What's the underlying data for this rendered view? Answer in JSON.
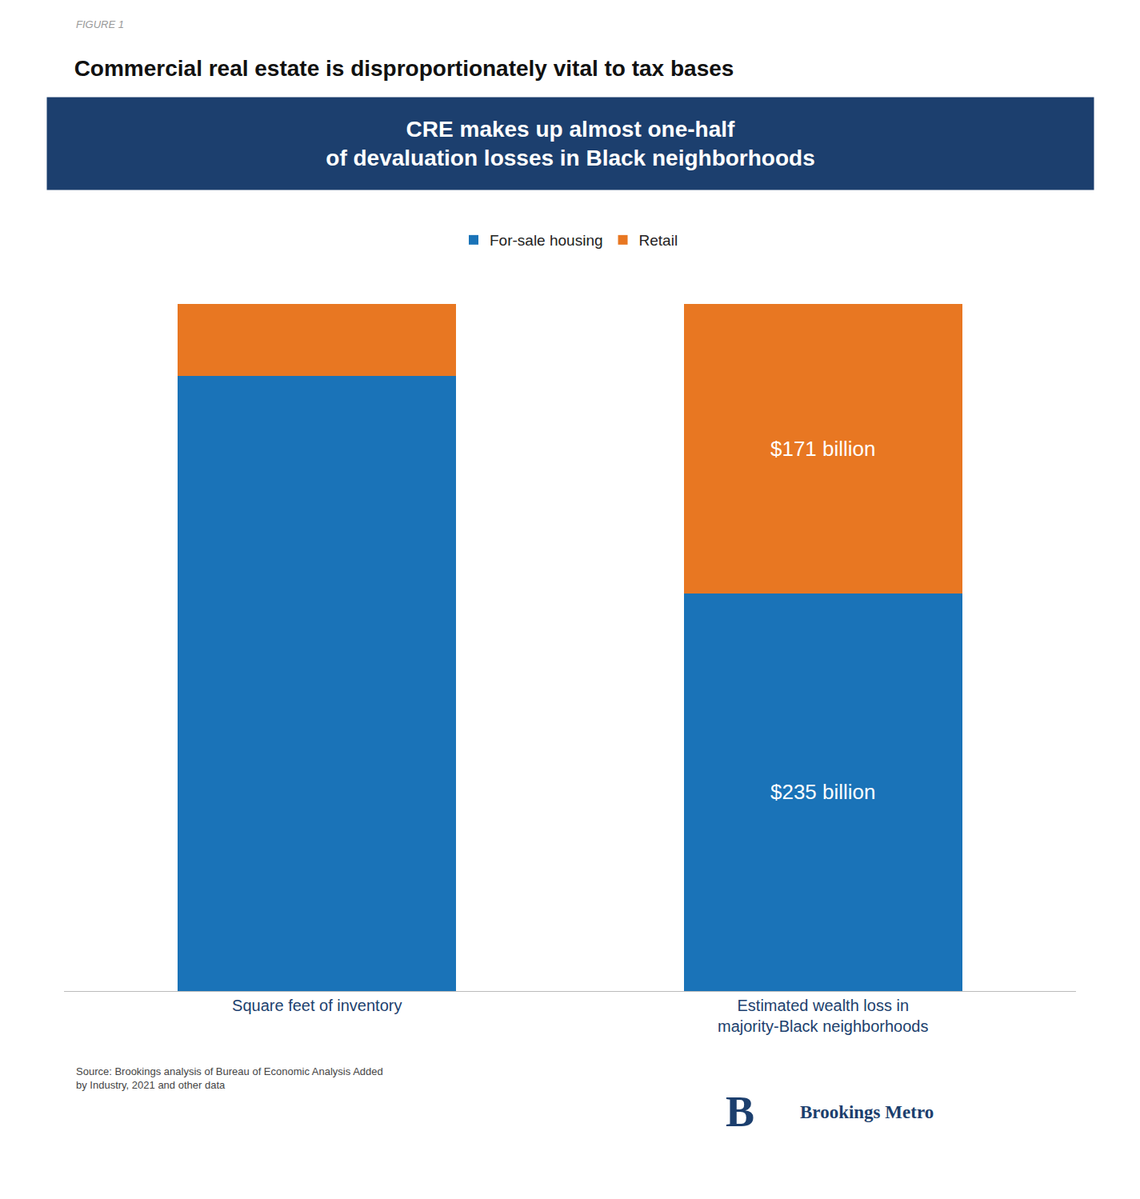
{
  "chart_data": {
    "type": "bar",
    "title": "Commercial real estate is disproportionately vital to tax bases",
    "subtitle": "CRE makes up almost one-half\nof devaluation losses in Black neighborhoods",
    "categories": [
      "Square feet of inventory",
      "Estimated wealth loss in\nmajority-Black neighborhoods"
    ],
    "series": [
      {
        "name": "For-sale housing",
        "color": "#1a73b8",
        "values": [
          89.5,
          57.88177339901478
        ]
      },
      {
        "name": "Retail",
        "color": "#e87722",
        "values": [
          10.5,
          42.11822660098522
        ]
      }
    ],
    "stacked": true,
    "ylim": [
      0,
      100
    ],
    "yticks": [
      0,
      100
    ],
    "tick_labels": "x",
    "grid": false,
    "legend": "top",
    "annotations": [
      {
        "text": "FIGURE 1"
      },
      {
        "text": "Source: Brookings analysis of Bureau of Economic Analysis Added\nby Industry, 2021 and other data"
      },
      {
        "text": "B"
      },
      {
        "text": "Brookings Metro"
      },
      {
        "text": "$235 billion",
        "category": "Estimated wealth loss in\nmajority-Black neighborhoods",
        "series": "For-sale housing"
      },
      {
        "text": "$171 billion",
        "category": "Estimated wealth loss in\nmajority-Black neighborhoods",
        "series": "Retail"
      }
    ]
  }
}
